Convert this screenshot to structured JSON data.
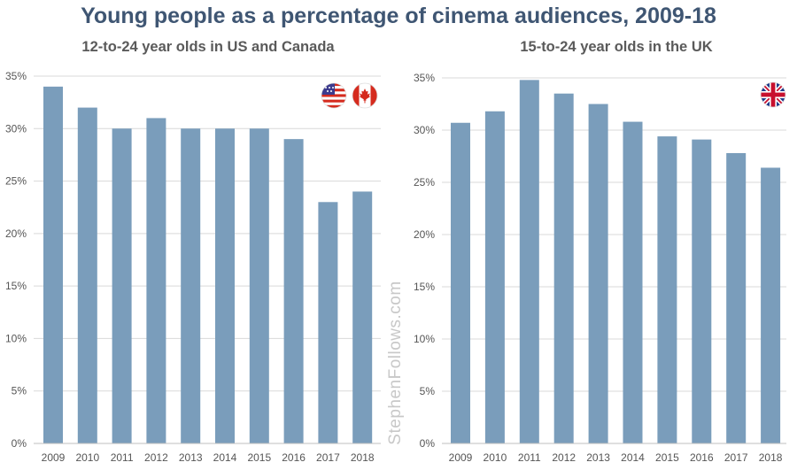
{
  "title": "Young people as a percentage of cinema audiences, 2009-18",
  "watermark": "StephenFollows.com",
  "colors": {
    "bar": "#7a9dbb",
    "grid": "#d9d9d9",
    "title": "#3f5673",
    "subtitle": "#5a5a5a",
    "tick": "#555555"
  },
  "flags": {
    "left": [
      "us-flag-icon",
      "canada-flag-icon"
    ],
    "right": [
      "uk-flag-icon"
    ]
  },
  "chart_data": [
    {
      "type": "bar",
      "title": "12-to-24 year olds in US and Canada",
      "categories": [
        "2009",
        "2010",
        "2011",
        "2012",
        "2013",
        "2014",
        "2015",
        "2016",
        "2017",
        "2018"
      ],
      "values": [
        34,
        32,
        30,
        31,
        30,
        30,
        30,
        29,
        23,
        24
      ],
      "xlabel": "",
      "ylabel": "",
      "ylim": [
        0,
        35
      ],
      "yticks": [
        0,
        5,
        10,
        15,
        20,
        25,
        30,
        35
      ],
      "ytick_labels": [
        "0%",
        "5%",
        "10%",
        "15%",
        "20%",
        "25%",
        "30%",
        "35%"
      ],
      "grid": true,
      "legend": "none"
    },
    {
      "type": "bar",
      "title": "15-to-24 year olds in the UK",
      "categories": [
        "2009",
        "2010",
        "2011",
        "2012",
        "2013",
        "2014",
        "2015",
        "2016",
        "2017",
        "2018"
      ],
      "values": [
        30.7,
        31.8,
        34.8,
        33.5,
        32.5,
        30.8,
        29.4,
        29.1,
        27.8,
        26.4
      ],
      "xlabel": "",
      "ylabel": "",
      "ylim": [
        0,
        35
      ],
      "yticks": [
        0,
        5,
        10,
        15,
        20,
        25,
        30,
        35
      ],
      "ytick_labels": [
        "0%",
        "5%",
        "10%",
        "15%",
        "20%",
        "25%",
        "30%",
        "35%"
      ],
      "grid": true,
      "legend": "none"
    }
  ]
}
